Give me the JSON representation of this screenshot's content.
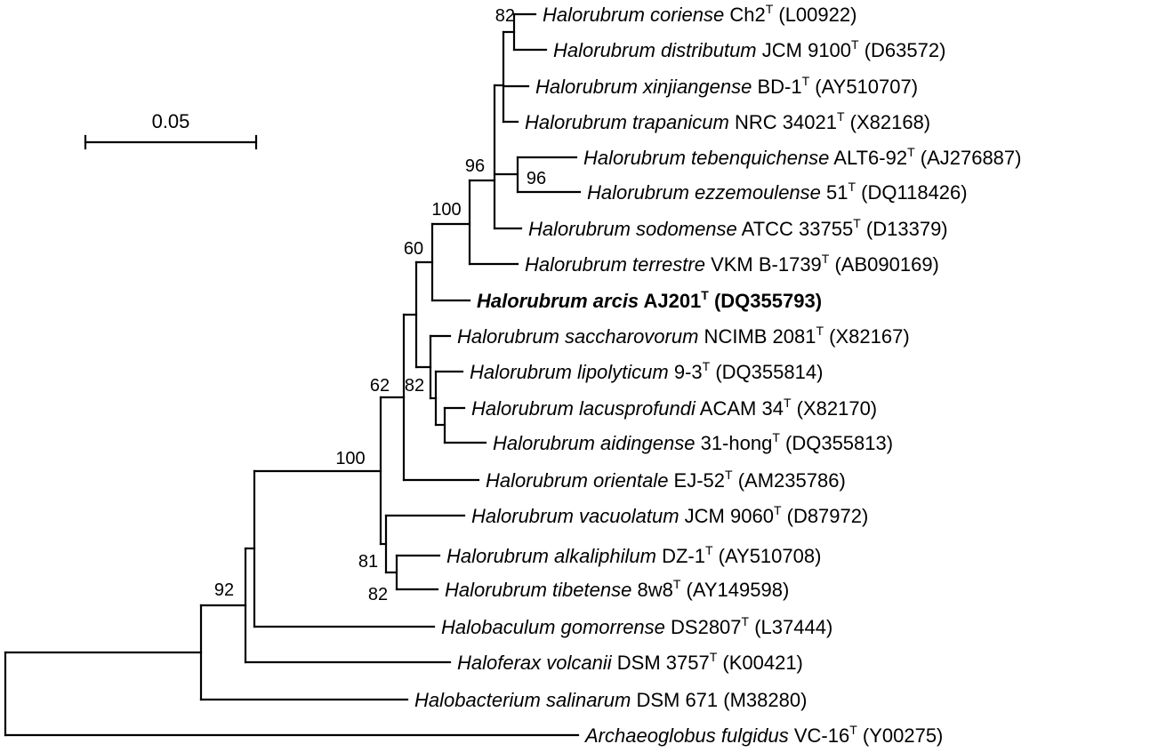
{
  "scale_bar": {
    "label": "0.05"
  },
  "taxa": [
    {
      "id": "coriense",
      "species": "Halorubrum coriense",
      "strain": "Ch2",
      "type": true,
      "acc": "(L00922)"
    },
    {
      "id": "distributum",
      "species": "Halorubrum distributum",
      "strain": "JCM 9100",
      "type": true,
      "acc": "(D63572)"
    },
    {
      "id": "xinjiangense",
      "species": "Halorubrum xinjiangense",
      "strain": "BD-1",
      "type": true,
      "acc": "(AY510707)"
    },
    {
      "id": "trapanicum",
      "species": "Halorubrum trapanicum",
      "strain": "NRC 34021",
      "type": true,
      "acc": "(X82168)"
    },
    {
      "id": "tebenquichense",
      "species": "Halorubrum tebenquichense",
      "strain": "ALT6-92",
      "type": true,
      "acc": "(AJ276887)"
    },
    {
      "id": "ezzemoulense",
      "species": "Halorubrum ezzemoulense",
      "strain": "51",
      "type": true,
      "acc": "(DQ118426)"
    },
    {
      "id": "sodomense",
      "species": "Halorubrum sodomense",
      "strain": "ATCC 33755",
      "type": true,
      "acc": "(D13379)"
    },
    {
      "id": "terrestre",
      "species": "Halorubrum terrestre",
      "strain": "VKM B-1739",
      "type": true,
      "acc": "(AB090169)"
    },
    {
      "id": "arcis",
      "species": "Halorubrum arcis",
      "strain": "AJ201",
      "type": true,
      "acc": "(DQ355793)",
      "bold": true
    },
    {
      "id": "saccharovorum",
      "species": "Halorubrum saccharovorum",
      "strain": "NCIMB 2081",
      "type": true,
      "acc": "(X82167)"
    },
    {
      "id": "lipolyticum",
      "species": "Halorubrum lipolyticum",
      "strain": "9-3",
      "type": true,
      "acc": "(DQ355814)"
    },
    {
      "id": "lacusprofundi",
      "species": "Halorubrum lacusprofundi",
      "strain": "ACAM 34",
      "type": true,
      "acc": "(X82170)"
    },
    {
      "id": "aidingense",
      "species": "Halorubrum aidingense",
      "strain": "31-hong",
      "type": true,
      "acc": "(DQ355813)"
    },
    {
      "id": "orientale",
      "species": "Halorubrum orientale",
      "strain": "EJ-52",
      "type": true,
      "acc": "(AM235786)"
    },
    {
      "id": "vacuolatum",
      "species": "Halorubrum vacuolatum",
      "strain": "JCM 9060",
      "type": true,
      "acc": "(D87972)"
    },
    {
      "id": "alkaliphilum",
      "species": "Halorubrum alkaliphilum",
      "strain": "DZ-1",
      "type": true,
      "acc": "(AY510708)"
    },
    {
      "id": "tibetense",
      "species": "Halorubrum tibetense",
      "strain": "8w8",
      "type": true,
      "acc": "(AY149598)"
    },
    {
      "id": "gomorrense",
      "species": "Halobaculum gomorrense",
      "strain": "DS2807",
      "type": true,
      "acc": "(L37444)"
    },
    {
      "id": "volcanii",
      "species": "Haloferax volcanii",
      "strain": "DSM 3757",
      "type": true,
      "acc": "(K00421)"
    },
    {
      "id": "salinarum",
      "species": "Halobacterium salinarum",
      "strain": "DSM 671",
      "type": false,
      "acc": "(M38280)"
    },
    {
      "id": "fulgidus",
      "species": "Archaeoglobus fulgidus",
      "strain": "VC-16",
      "type": true,
      "acc": "(Y00275)"
    }
  ],
  "type_marker": "T",
  "bootstrap": [
    {
      "id": "bs-coriense-distributum",
      "value": "82"
    },
    {
      "id": "bs-96-upper",
      "value": "96"
    },
    {
      "id": "bs-96-lower",
      "value": "96"
    },
    {
      "id": "bs-100-upper",
      "value": "100"
    },
    {
      "id": "bs-60",
      "value": "60"
    },
    {
      "id": "bs-62",
      "value": "62"
    },
    {
      "id": "bs-82-middle",
      "value": "82"
    },
    {
      "id": "bs-100-lower",
      "value": "100"
    },
    {
      "id": "bs-81",
      "value": "81"
    },
    {
      "id": "bs-82-lower",
      "value": "82"
    },
    {
      "id": "bs-92",
      "value": "92"
    }
  ]
}
